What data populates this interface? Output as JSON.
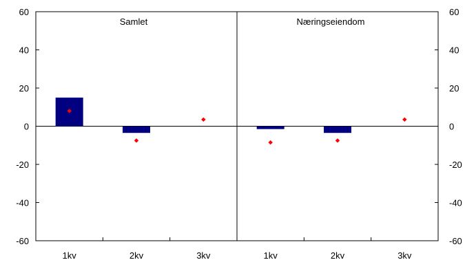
{
  "chart_data": {
    "type": "bar",
    "categories": [
      "1kv",
      "2kv",
      "3kv",
      "1kv",
      "2kv",
      "3kv"
    ],
    "panels": [
      {
        "title": "Samlet",
        "bars": [
          15,
          -3.5,
          null
        ],
        "points": [
          8,
          -7.5,
          3.5
        ]
      },
      {
        "title": "Næringseiendom",
        "bars": [
          -1.5,
          -3.5,
          null
        ],
        "points": [
          -8.5,
          -7.5,
          3.5
        ]
      }
    ],
    "ylim": [
      -60,
      60
    ],
    "yticks": [
      "60",
      "40",
      "20",
      "0",
      "-20",
      "-40",
      "-60"
    ],
    "y2ticks": [
      "60",
      "40",
      "20",
      "0",
      "-20",
      "-40",
      "-60"
    ],
    "colors": {
      "bar": "#000080",
      "point": "#ff0000",
      "axis": "#000000"
    }
  }
}
